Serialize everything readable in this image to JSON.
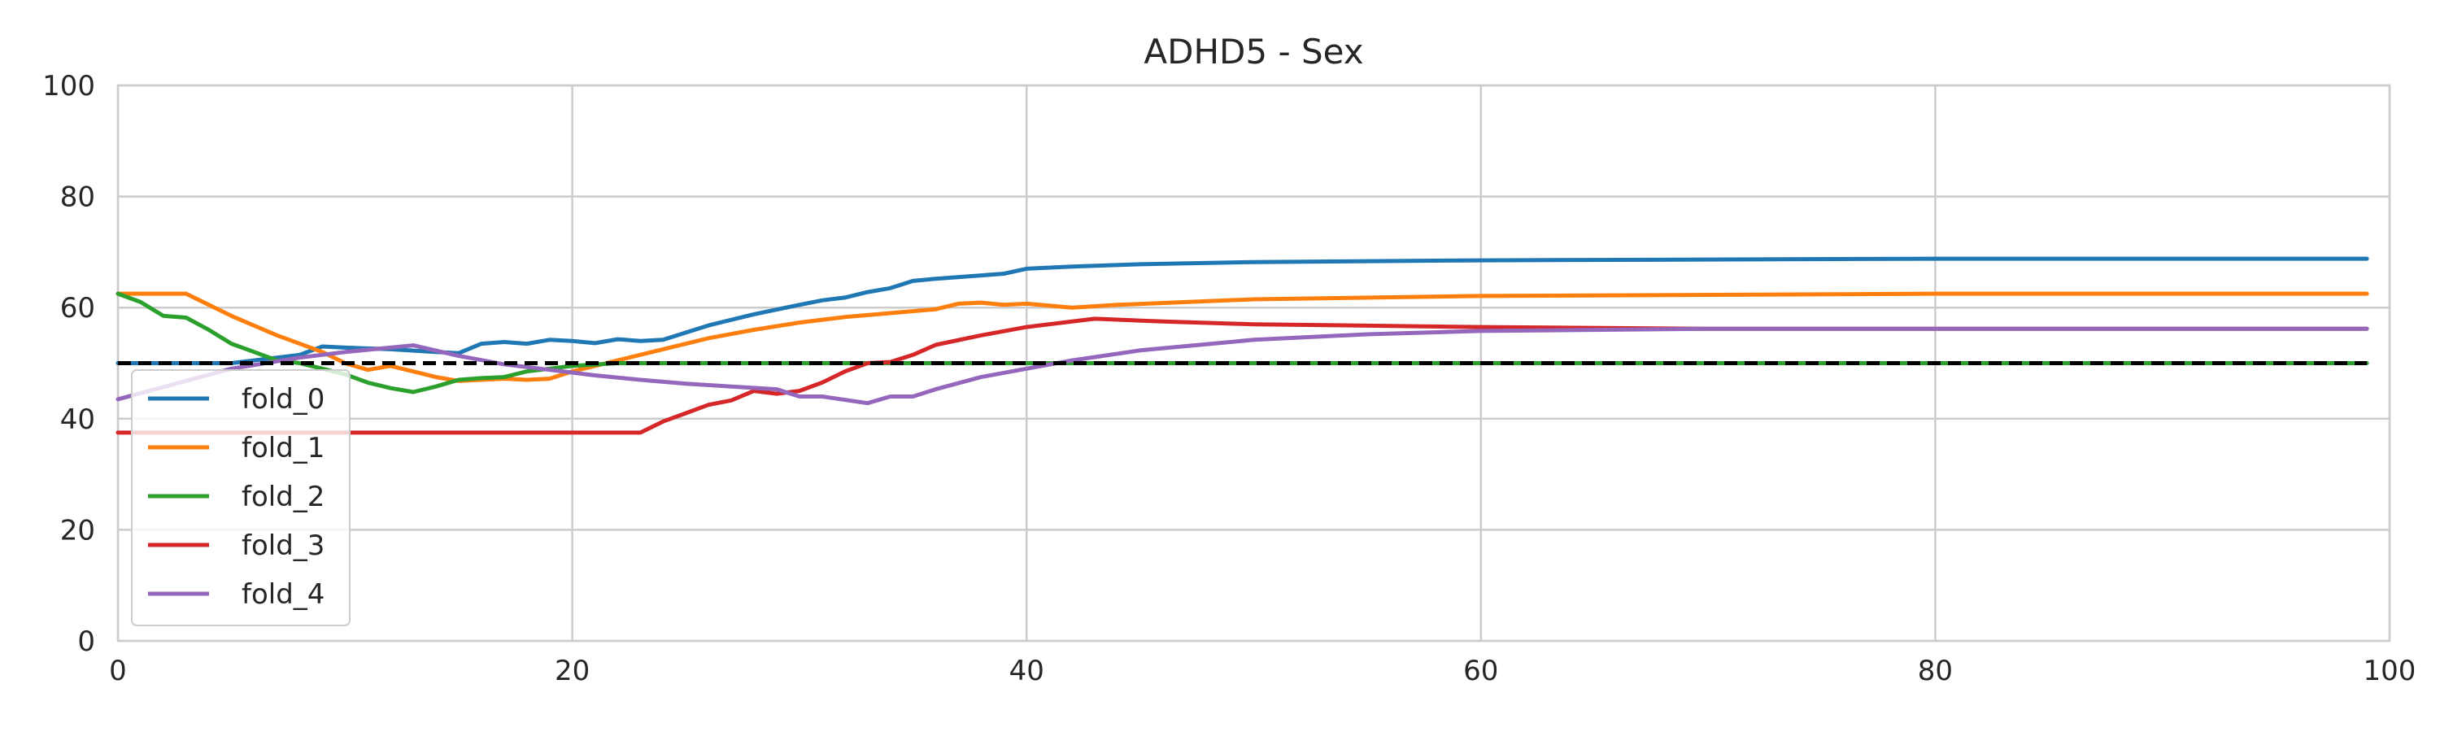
{
  "chart_data": {
    "type": "line",
    "title": "ADHD5 - Sex",
    "xlabel": "",
    "ylabel": "",
    "xlim": [
      0,
      100
    ],
    "ylim": [
      0,
      100
    ],
    "x_ticks": [
      0,
      20,
      40,
      60,
      80,
      100
    ],
    "y_ticks": [
      0,
      20,
      40,
      60,
      80,
      100
    ],
    "grid": true,
    "legend_position": "lower-left",
    "reference_line": {
      "y": 50,
      "color": "#000000",
      "style": "dashed"
    },
    "series": [
      {
        "name": "fold_0",
        "color": "#1f77b4",
        "points": [
          [
            0,
            50
          ],
          [
            5,
            50
          ],
          [
            7,
            51
          ],
          [
            8,
            51.5
          ],
          [
            9,
            53
          ],
          [
            10,
            52.8
          ],
          [
            12,
            52.5
          ],
          [
            14,
            52
          ],
          [
            15,
            51.8
          ],
          [
            16,
            53.5
          ],
          [
            17,
            53.8
          ],
          [
            18,
            53.5
          ],
          [
            19,
            54.2
          ],
          [
            20,
            54
          ],
          [
            21,
            53.6
          ],
          [
            22,
            54.3
          ],
          [
            23,
            54
          ],
          [
            24,
            54.2
          ],
          [
            25,
            55.5
          ],
          [
            26,
            56.8
          ],
          [
            28,
            58.8
          ],
          [
            30,
            60.5
          ],
          [
            31,
            61.3
          ],
          [
            32,
            61.8
          ],
          [
            33,
            62.8
          ],
          [
            34,
            63.5
          ],
          [
            35,
            64.8
          ],
          [
            36,
            65.2
          ],
          [
            38,
            65.8
          ],
          [
            39,
            66.1
          ],
          [
            40,
            67
          ],
          [
            42,
            67.4
          ],
          [
            45,
            67.8
          ],
          [
            50,
            68.2
          ],
          [
            60,
            68.5
          ],
          [
            80,
            68.8
          ],
          [
            99,
            68.8
          ]
        ]
      },
      {
        "name": "fold_1",
        "color": "#ff7f0e",
        "points": [
          [
            0,
            62.5
          ],
          [
            3,
            62.5
          ],
          [
            5,
            58.5
          ],
          [
            7,
            55
          ],
          [
            9,
            52
          ],
          [
            10,
            50
          ],
          [
            11,
            48.8
          ],
          [
            12,
            49.5
          ],
          [
            13,
            48.5
          ],
          [
            14,
            47.5
          ],
          [
            15,
            46.8
          ],
          [
            16,
            47
          ],
          [
            17,
            47.2
          ],
          [
            18,
            47
          ],
          [
            19,
            47.2
          ],
          [
            20,
            48.5
          ],
          [
            21,
            49.5
          ],
          [
            22,
            50.5
          ],
          [
            24,
            52.5
          ],
          [
            26,
            54.5
          ],
          [
            28,
            56
          ],
          [
            30,
            57.3
          ],
          [
            32,
            58.3
          ],
          [
            34,
            59
          ],
          [
            36,
            59.7
          ],
          [
            37,
            60.7
          ],
          [
            38,
            60.9
          ],
          [
            39,
            60.5
          ],
          [
            40,
            60.7
          ],
          [
            42,
            60
          ],
          [
            44,
            60.5
          ],
          [
            50,
            61.5
          ],
          [
            60,
            62.1
          ],
          [
            80,
            62.5
          ],
          [
            99,
            62.5
          ]
        ]
      },
      {
        "name": "fold_2",
        "color": "#2ca02c",
        "points": [
          [
            0,
            62.5
          ],
          [
            1,
            61
          ],
          [
            2,
            58.5
          ],
          [
            3,
            58.2
          ],
          [
            4,
            56
          ],
          [
            5,
            53.5
          ],
          [
            6,
            52
          ],
          [
            7,
            50.5
          ],
          [
            8,
            50
          ],
          [
            9,
            49
          ],
          [
            10,
            48
          ],
          [
            11,
            46.5
          ],
          [
            12,
            45.5
          ],
          [
            13,
            44.8
          ],
          [
            14,
            45.8
          ],
          [
            15,
            47
          ],
          [
            16,
            47.3
          ],
          [
            17,
            47.5
          ],
          [
            18,
            48.5
          ],
          [
            19,
            49
          ],
          [
            20,
            49.5
          ],
          [
            22,
            50
          ],
          [
            99,
            50
          ]
        ]
      },
      {
        "name": "fold_3",
        "color": "#d62728",
        "points": [
          [
            0,
            37.5
          ],
          [
            23,
            37.5
          ],
          [
            24,
            39.5
          ],
          [
            25,
            41
          ],
          [
            26,
            42.5
          ],
          [
            27,
            43.3
          ],
          [
            28,
            45
          ],
          [
            29,
            44.5
          ],
          [
            30,
            45
          ],
          [
            31,
            46.5
          ],
          [
            32,
            48.5
          ],
          [
            33,
            50
          ],
          [
            34,
            50.2
          ],
          [
            35,
            51.5
          ],
          [
            36,
            53.3
          ],
          [
            38,
            55
          ],
          [
            40,
            56.5
          ],
          [
            43,
            58
          ],
          [
            46,
            57.5
          ],
          [
            50,
            57
          ],
          [
            60,
            56.5
          ],
          [
            70,
            56.2
          ],
          [
            99,
            56.2
          ]
        ]
      },
      {
        "name": "fold_4",
        "color": "#9467bd",
        "points": [
          [
            0,
            43.5
          ],
          [
            5,
            49
          ],
          [
            8,
            51
          ],
          [
            10,
            52
          ],
          [
            12,
            52.8
          ],
          [
            13,
            53.2
          ],
          [
            15,
            51.3
          ],
          [
            17,
            49.8
          ],
          [
            19,
            48.8
          ],
          [
            21,
            47.8
          ],
          [
            23,
            47
          ],
          [
            25,
            46.3
          ],
          [
            27,
            45.8
          ],
          [
            29,
            45.3
          ],
          [
            30,
            44
          ],
          [
            31,
            44
          ],
          [
            33,
            42.8
          ],
          [
            34,
            44
          ],
          [
            35,
            44
          ],
          [
            36,
            45.3
          ],
          [
            38,
            47.5
          ],
          [
            40,
            49
          ],
          [
            42,
            50.5
          ],
          [
            45,
            52.3
          ],
          [
            50,
            54.2
          ],
          [
            55,
            55.2
          ],
          [
            60,
            55.8
          ],
          [
            70,
            56.2
          ],
          [
            99,
            56.2
          ]
        ]
      }
    ]
  }
}
